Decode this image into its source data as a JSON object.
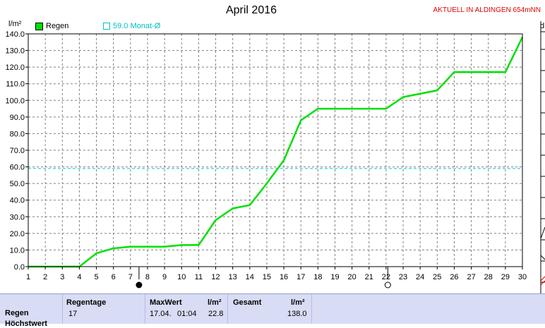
{
  "header": {
    "title": "April 2016",
    "station": "AKTUELL IN ALDINGEN 654mNN",
    "unit": "l/m²",
    "right_letter": "d"
  },
  "legend": {
    "rain": "Regen",
    "month_avg": "59.0 Monat-Ø"
  },
  "colors": {
    "rain_line": "#00e000",
    "month_avg_line": "#00c8d0",
    "grid": "#808080",
    "panel_bg": "#d8dcf4"
  },
  "chart_data": {
    "type": "line",
    "title": "April 2016",
    "ylabel": "l/m²",
    "xlabel": "",
    "xlim": [
      1,
      30
    ],
    "ylim": [
      0,
      140
    ],
    "x_ticks": [
      1,
      2,
      3,
      4,
      5,
      6,
      7,
      8,
      9,
      10,
      11,
      12,
      13,
      14,
      15,
      16,
      17,
      18,
      19,
      20,
      21,
      22,
      23,
      24,
      25,
      26,
      27,
      28,
      29,
      30
    ],
    "y_ticks": [
      0,
      10,
      20,
      30,
      40,
      50,
      60,
      70,
      80,
      90,
      100,
      110,
      120,
      130,
      140
    ],
    "y_tick_labels": [
      "0.0",
      "10.0",
      "20.0",
      "30.0",
      "40.0",
      "50.0",
      "60.0",
      "70.0",
      "80.0",
      "90.0",
      "100.0",
      "110.0",
      "120.0",
      "130.0",
      "140.0"
    ],
    "grid": true,
    "series": [
      {
        "name": "Regen",
        "x": [
          1,
          2,
          3,
          4,
          5,
          6,
          7,
          8,
          9,
          10,
          11,
          12,
          13,
          14,
          15,
          16,
          17,
          18,
          19,
          20,
          21,
          22,
          23,
          24,
          25,
          26,
          27,
          28,
          29,
          30
        ],
        "values": [
          0,
          0,
          0,
          0,
          8,
          11,
          12,
          12,
          12,
          13,
          13,
          28,
          35,
          37,
          50,
          64,
          88,
          95,
          95,
          95,
          95,
          95,
          102,
          104,
          106,
          117,
          117,
          117,
          117,
          138
        ]
      }
    ],
    "reference_line": {
      "name": "59.0 Monat-Ø",
      "value": 59.0
    },
    "moon_phases": [
      {
        "x": 7.5,
        "phase": "new moon"
      },
      {
        "x": 22.1,
        "phase": "full moon"
      }
    ]
  },
  "stats": {
    "row_label": "Regen",
    "second_row_label": "Höchstwert",
    "rain_days": {
      "header": "Regentage",
      "value": "17"
    },
    "max": {
      "header": "MaxWert",
      "unit": "l/m²",
      "date": "17.04.",
      "time": "01:04",
      "value": "22.8"
    },
    "total": {
      "header": "Gesamt",
      "unit": "l/m²",
      "value": "138.0"
    }
  }
}
